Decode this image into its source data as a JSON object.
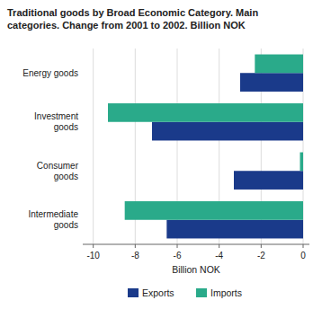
{
  "chart_data": {
    "type": "bar",
    "orientation": "horizontal",
    "title": "Traditional goods by Broad Economic Category. Main\ncategories. Change from 2001 to 2002. Billion NOK",
    "categories": [
      "Energy goods",
      "Investment\ngoods",
      "Consumer\ngoods",
      "Intermediate\ngoods"
    ],
    "series": [
      {
        "name": "Exports",
        "color": "#1a3a8a",
        "values": [
          -3.0,
          -7.2,
          -3.3,
          -6.5
        ]
      },
      {
        "name": "Imports",
        "color": "#2aaa8a",
        "values": [
          -2.3,
          -9.3,
          -0.15,
          -8.5
        ]
      }
    ],
    "x_label": "Billion NOK",
    "xlim": [
      -10.5,
      0.3
    ],
    "xticks": [
      -10,
      -8,
      -6,
      -4,
      -2,
      0
    ],
    "grid": true,
    "legend": "bottom"
  }
}
